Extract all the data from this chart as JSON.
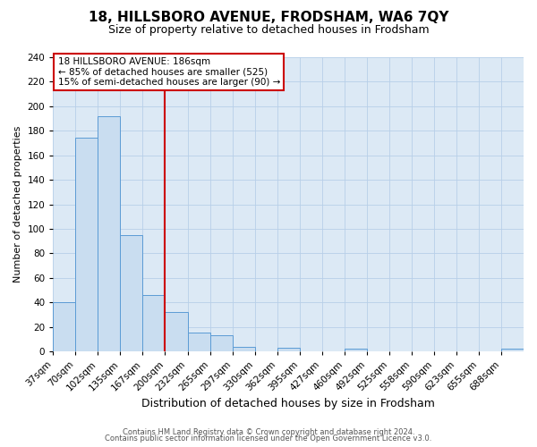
{
  "title": "18, HILLSBORO AVENUE, FRODSHAM, WA6 7QY",
  "subtitle": "Size of property relative to detached houses in Frodsham",
  "xlabel": "Distribution of detached houses by size in Frodsham",
  "ylabel": "Number of detached properties",
  "bin_labels": [
    "37sqm",
    "70sqm",
    "102sqm",
    "135sqm",
    "167sqm",
    "200sqm",
    "232sqm",
    "265sqm",
    "297sqm",
    "330sqm",
    "362sqm",
    "395sqm",
    "427sqm",
    "460sqm",
    "492sqm",
    "525sqm",
    "558sqm",
    "590sqm",
    "623sqm",
    "655sqm",
    "688sqm"
  ],
  "bar_values": [
    40,
    174,
    192,
    95,
    46,
    32,
    15,
    13,
    4,
    0,
    3,
    0,
    0,
    2,
    0,
    0,
    0,
    0,
    0,
    0,
    2
  ],
  "bar_color": "#c9ddf0",
  "bar_edge_color": "#5b9bd5",
  "vline_x_index": 5,
  "vline_color": "#cc0000",
  "ylim": [
    0,
    240
  ],
  "yticks": [
    0,
    20,
    40,
    60,
    80,
    100,
    120,
    140,
    160,
    180,
    200,
    220,
    240
  ],
  "annotation_title": "18 HILLSBORO AVENUE: 186sqm",
  "annotation_line1": "← 85% of detached houses are smaller (525)",
  "annotation_line2": "15% of semi-detached houses are larger (90) →",
  "annotation_box_facecolor": "#ffffff",
  "annotation_box_edgecolor": "#cc0000",
  "plot_bg_color": "#dce9f5",
  "figure_bg_color": "#ffffff",
  "grid_color": "#b8cfe8",
  "footer_line1": "Contains HM Land Registry data © Crown copyright and database right 2024.",
  "footer_line2": "Contains public sector information licensed under the Open Government Licence v3.0.",
  "title_fontsize": 11,
  "subtitle_fontsize": 9,
  "xlabel_fontsize": 9,
  "ylabel_fontsize": 8,
  "tick_fontsize": 7.5,
  "footer_fontsize": 6
}
